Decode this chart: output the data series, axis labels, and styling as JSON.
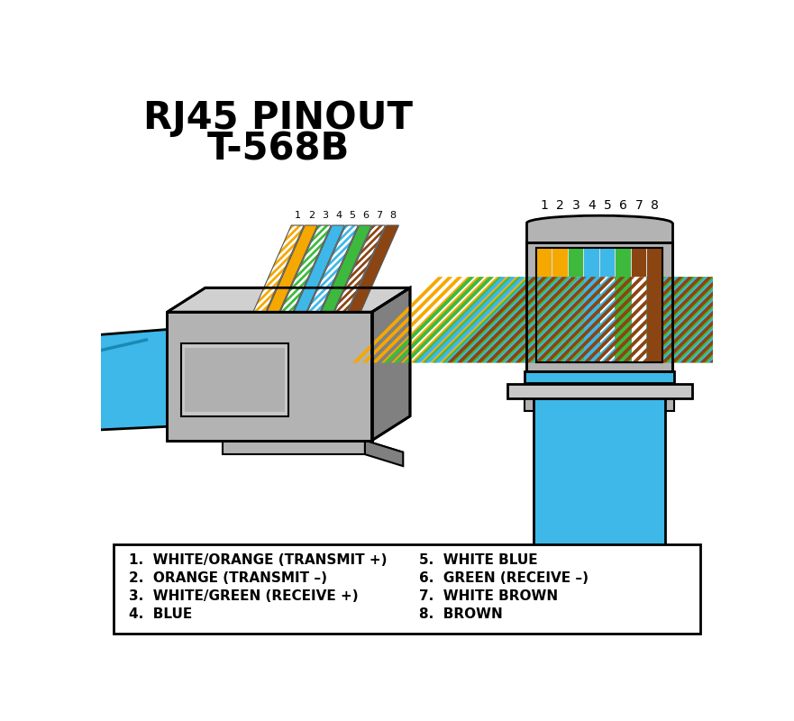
{
  "title_line1": "RJ45 PINOUT",
  "title_line2": "T-568B",
  "background_color": "#ffffff",
  "title_color": "#000000",
  "connector_gray": "#b3b3b3",
  "connector_gray_dark": "#808080",
  "connector_gray_light": "#d0d0d0",
  "cable_blue": "#3db8e8",
  "wire_colors": [
    {
      "solid": "#f5a800",
      "stripe": "#ffffff",
      "name": "white/orange"
    },
    {
      "solid": "#f5a800",
      "stripe": null,
      "name": "orange"
    },
    {
      "solid": "#3dba3d",
      "stripe": "#ffffff",
      "name": "white/green"
    },
    {
      "solid": "#3db8e8",
      "stripe": null,
      "name": "blue"
    },
    {
      "solid": "#3db8e8",
      "stripe": "#ffffff",
      "name": "white/blue"
    },
    {
      "solid": "#3dba3d",
      "stripe": null,
      "name": "green"
    },
    {
      "solid": "#8b4513",
      "stripe": "#ffffff",
      "name": "white/brown"
    },
    {
      "solid": "#8b4513",
      "stripe": null,
      "name": "brown"
    }
  ],
  "pin_labels_left": [
    "1.  WHITE/ORANGE (TRANSMIT +)",
    "2.  ORANGE (TRANSMIT –)",
    "3.  WHITE/GREEN (RECEIVE +)",
    "4.  BLUE"
  ],
  "pin_labels_right": [
    "5.  WHITE BLUE",
    "6.  GREEN (RECEIVE –)",
    "7.  WHITE BROWN",
    "8.  BROWN"
  ],
  "pin_numbers": [
    "1",
    "2",
    "3",
    "4",
    "5",
    "6",
    "7",
    "8"
  ]
}
